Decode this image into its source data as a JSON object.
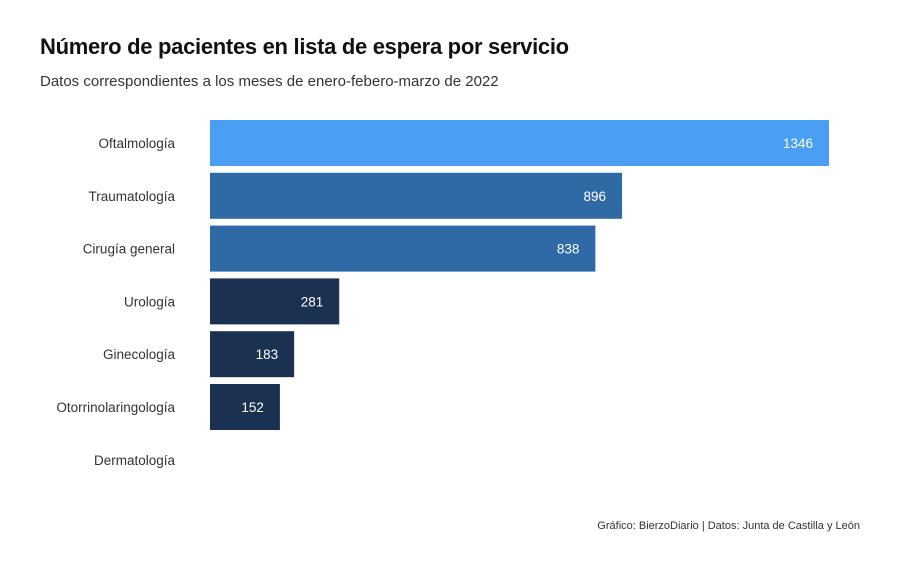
{
  "chart_data": {
    "type": "bar",
    "orientation": "horizontal",
    "title": "Número de pacientes en lista de espera por servicio",
    "subtitle": "Datos correspondientes a los meses de enero-febero-marzo de 2022",
    "categories": [
      "Oftalmología",
      "Traumatología",
      "Cirugía general",
      "Urología",
      "Ginecología",
      "Otorrinolaringología",
      "Dermatología"
    ],
    "values": [
      1346,
      896,
      838,
      281,
      183,
      152,
      0
    ],
    "value_labels": [
      "1346",
      "896",
      "838",
      "281",
      "183",
      "152",
      ""
    ],
    "bar_colors": [
      "#4a9ff5",
      "#2f6aa6",
      "#2f6aa6",
      "#1b3152",
      "#1b3152",
      "#1b3152",
      "#1b3152"
    ],
    "xlim": [
      0,
      1346
    ],
    "grid": false,
    "legend": "none",
    "xlabel": "",
    "ylabel": ""
  },
  "caption": "Gráfico: BierzoDiario | Datos: Junta de Castilla y León"
}
